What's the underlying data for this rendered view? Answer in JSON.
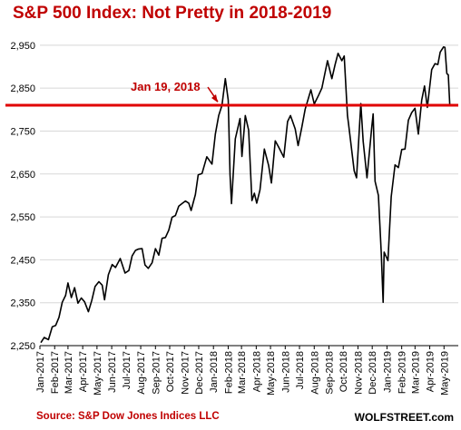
{
  "title": "S&P 500 Index: Not Pretty in 2018-2019",
  "source": "Source: S&P Dow Jones Indices LLC",
  "watermark": "WOLFSTREET.com",
  "colors": {
    "title": "#c00000",
    "reference_line": "#e00000",
    "series": "#000000",
    "annotation": "#c00000",
    "grid": "#d8d8d8"
  },
  "chart_data": {
    "type": "line",
    "title": "S&P 500 Index: Not Pretty in 2018-2019",
    "xlabel": "",
    "ylabel": "",
    "ylim": [
      2250,
      2975
    ],
    "yticks": [
      2250,
      2350,
      2450,
      2550,
      2650,
      2750,
      2850,
      2950
    ],
    "ytick_labels": [
      "2,250",
      "2,350",
      "2,450",
      "2,550",
      "2,650",
      "2,750",
      "2,850",
      "2,950"
    ],
    "xlim": [
      "2017-01-01",
      "2019-05-31"
    ],
    "xtick_labels": [
      "Jan-2017",
      "Feb-2017",
      "Mar-2017",
      "Apr-2017",
      "May-2017",
      "Jun-2017",
      "Jul-2017",
      "Aug-2017",
      "Sep-2017",
      "Oct-2017",
      "Nov-2017",
      "Dec-2017",
      "Jan-2018",
      "Feb-2018",
      "Mar-2018",
      "Apr-2018",
      "May-2018",
      "Jun-2018",
      "Jul-2018",
      "Aug-2018",
      "Sep-2018",
      "Oct-2018",
      "Nov-2018",
      "Dec-2018",
      "Jan-2019",
      "Feb-2019",
      "Mar-2019",
      "Apr-2019",
      "May-2019"
    ],
    "grid": "horizontal",
    "legend": "none",
    "reference_line": {
      "y": 2810,
      "label": "Jan 19, 2018"
    },
    "series": [
      {
        "values": [
          [
            "2017-01-03",
            2257
          ],
          [
            "2017-01-10",
            2269
          ],
          [
            "2017-01-19",
            2264
          ],
          [
            "2017-01-27",
            2294
          ],
          [
            "2017-02-03",
            2297
          ],
          [
            "2017-02-10",
            2316
          ],
          [
            "2017-02-17",
            2351
          ],
          [
            "2017-02-24",
            2367
          ],
          [
            "2017-03-01",
            2396
          ],
          [
            "2017-03-08",
            2362
          ],
          [
            "2017-03-15",
            2385
          ],
          [
            "2017-03-22",
            2349
          ],
          [
            "2017-03-29",
            2361
          ],
          [
            "2017-04-05",
            2352
          ],
          [
            "2017-04-13",
            2329
          ],
          [
            "2017-04-20",
            2355
          ],
          [
            "2017-04-27",
            2388
          ],
          [
            "2017-05-05",
            2399
          ],
          [
            "2017-05-12",
            2391
          ],
          [
            "2017-05-17",
            2357
          ],
          [
            "2017-05-25",
            2415
          ],
          [
            "2017-06-02",
            2439
          ],
          [
            "2017-06-09",
            2432
          ],
          [
            "2017-06-19",
            2453
          ],
          [
            "2017-06-29",
            2419
          ],
          [
            "2017-07-07",
            2425
          ],
          [
            "2017-07-14",
            2459
          ],
          [
            "2017-07-21",
            2472
          ],
          [
            "2017-07-27",
            2475
          ],
          [
            "2017-08-04",
            2476
          ],
          [
            "2017-08-10",
            2438
          ],
          [
            "2017-08-17",
            2430
          ],
          [
            "2017-08-25",
            2443
          ],
          [
            "2017-09-01",
            2476
          ],
          [
            "2017-09-08",
            2461
          ],
          [
            "2017-09-15",
            2500
          ],
          [
            "2017-09-22",
            2502
          ],
          [
            "2017-09-29",
            2519
          ],
          [
            "2017-10-06",
            2549
          ],
          [
            "2017-10-13",
            2553
          ],
          [
            "2017-10-20",
            2575
          ],
          [
            "2017-10-27",
            2581
          ],
          [
            "2017-11-03",
            2587
          ],
          [
            "2017-11-10",
            2582
          ],
          [
            "2017-11-15",
            2565
          ],
          [
            "2017-11-24",
            2602
          ],
          [
            "2017-11-30",
            2648
          ],
          [
            "2017-12-08",
            2651
          ],
          [
            "2017-12-18",
            2690
          ],
          [
            "2017-12-29",
            2673
          ],
          [
            "2018-01-05",
            2743
          ],
          [
            "2018-01-12",
            2786
          ],
          [
            "2018-01-19",
            2810
          ],
          [
            "2018-01-26",
            2872
          ],
          [
            "2018-02-01",
            2822
          ],
          [
            "2018-02-05",
            2648
          ],
          [
            "2018-02-08",
            2581
          ],
          [
            "2018-02-16",
            2732
          ],
          [
            "2018-02-26",
            2779
          ],
          [
            "2018-03-02",
            2691
          ],
          [
            "2018-03-09",
            2786
          ],
          [
            "2018-03-16",
            2752
          ],
          [
            "2018-03-23",
            2588
          ],
          [
            "2018-03-28",
            2605
          ],
          [
            "2018-04-02",
            2582
          ],
          [
            "2018-04-09",
            2613
          ],
          [
            "2018-04-18",
            2708
          ],
          [
            "2018-04-27",
            2670
          ],
          [
            "2018-05-03",
            2629
          ],
          [
            "2018-05-11",
            2727
          ],
          [
            "2018-05-18",
            2713
          ],
          [
            "2018-05-29",
            2689
          ],
          [
            "2018-06-06",
            2772
          ],
          [
            "2018-06-12",
            2786
          ],
          [
            "2018-06-22",
            2755
          ],
          [
            "2018-06-28",
            2716
          ],
          [
            "2018-07-06",
            2759
          ],
          [
            "2018-07-13",
            2801
          ],
          [
            "2018-07-25",
            2846
          ],
          [
            "2018-08-01",
            2813
          ],
          [
            "2018-08-10",
            2833
          ],
          [
            "2018-08-17",
            2850
          ],
          [
            "2018-08-29",
            2914
          ],
          [
            "2018-09-07",
            2872
          ],
          [
            "2018-09-14",
            2905
          ],
          [
            "2018-09-20",
            2931
          ],
          [
            "2018-09-28",
            2914
          ],
          [
            "2018-10-03",
            2925
          ],
          [
            "2018-10-10",
            2786
          ],
          [
            "2018-10-12",
            2768
          ],
          [
            "2018-10-24",
            2657
          ],
          [
            "2018-10-29",
            2641
          ],
          [
            "2018-11-07",
            2814
          ],
          [
            "2018-11-12",
            2726
          ],
          [
            "2018-11-20",
            2641
          ],
          [
            "2018-11-30",
            2760
          ],
          [
            "2018-12-03",
            2790
          ],
          [
            "2018-12-07",
            2633
          ],
          [
            "2018-12-14",
            2600
          ],
          [
            "2018-12-20",
            2467
          ],
          [
            "2018-12-24",
            2351
          ],
          [
            "2018-12-26",
            2468
          ],
          [
            "2019-01-03",
            2448
          ],
          [
            "2019-01-10",
            2597
          ],
          [
            "2019-01-18",
            2671
          ],
          [
            "2019-01-25",
            2665
          ],
          [
            "2019-02-01",
            2707
          ],
          [
            "2019-02-08",
            2708
          ],
          [
            "2019-02-15",
            2775
          ],
          [
            "2019-02-22",
            2793
          ],
          [
            "2019-03-01",
            2803
          ],
          [
            "2019-03-08",
            2743
          ],
          [
            "2019-03-15",
            2822
          ],
          [
            "2019-03-21",
            2855
          ],
          [
            "2019-03-27",
            2805
          ],
          [
            "2019-04-05",
            2893
          ],
          [
            "2019-04-12",
            2907
          ],
          [
            "2019-04-18",
            2905
          ],
          [
            "2019-04-23",
            2934
          ],
          [
            "2019-04-30",
            2946
          ],
          [
            "2019-05-03",
            2945
          ],
          [
            "2019-05-07",
            2884
          ],
          [
            "2019-05-10",
            2881
          ],
          [
            "2019-05-13",
            2812
          ]
        ]
      }
    ]
  }
}
